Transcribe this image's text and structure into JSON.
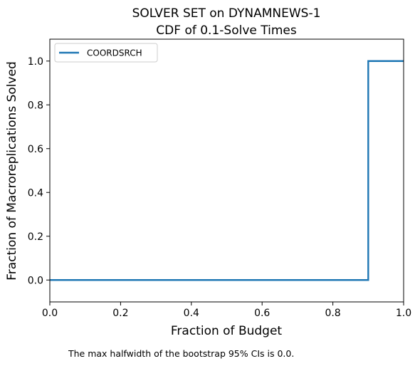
{
  "chart_data": {
    "type": "line",
    "title_lines": [
      "SOLVER SET on DYNAMNEWS-1",
      "CDF of 0.1-Solve Times"
    ],
    "xlabel": "Fraction of Budget",
    "ylabel": "Fraction of Macroreplications Solved",
    "xlim": [
      0.0,
      1.0
    ],
    "ylim": [
      -0.1,
      1.1
    ],
    "xticks": [
      0.0,
      0.2,
      0.4,
      0.6,
      0.8,
      1.0
    ],
    "xtick_labels": [
      "0.0",
      "0.2",
      "0.4",
      "0.6",
      "0.8",
      "1.0"
    ],
    "yticks": [
      0.0,
      0.2,
      0.4,
      0.6,
      0.8,
      1.0
    ],
    "ytick_labels": [
      "0.0",
      "0.2",
      "0.4",
      "0.6",
      "0.8",
      "1.0"
    ],
    "grid": false,
    "legend_position": "top-left",
    "series": [
      {
        "name": "COORDSRCH",
        "color": "#1f77b4",
        "style": "step",
        "x": [
          0.0,
          0.9,
          0.9,
          1.0
        ],
        "y": [
          0.0,
          0.0,
          1.0,
          1.0
        ]
      }
    ],
    "footnote": "The max halfwidth of the bootstrap 95% CIs is 0.0."
  }
}
